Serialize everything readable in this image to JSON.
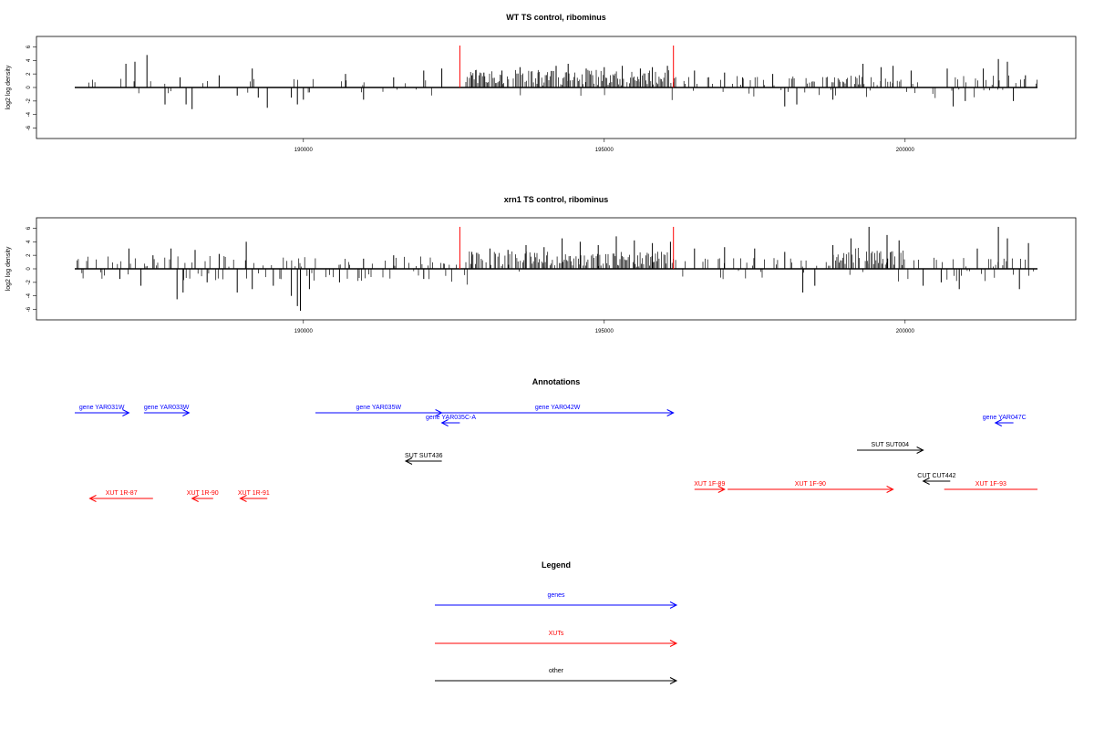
{
  "colors": {
    "gene": "#0000ff",
    "xut": "#ff0000",
    "other": "#000000",
    "highlight": "#ff0000",
    "signal": "#000000"
  },
  "chart_data": [
    {
      "type": "bar",
      "title": "WT TS control, ribominus",
      "ylabel": "log2 log density",
      "xlim": [
        186200,
        202200
      ],
      "ylim": [
        -7,
        7
      ],
      "yticks": [
        -6,
        -4,
        -2,
        0,
        2,
        4,
        6
      ],
      "xticks": [
        190000,
        195000,
        200000
      ],
      "highlights": [
        {
          "x": 192600,
          "y": 6.2
        },
        {
          "x": 196150,
          "y": 6.2
        }
      ],
      "peaks": [
        {
          "x": 187050,
          "y": 3.5
        },
        {
          "x": 187200,
          "y": 3.8
        },
        {
          "x": 187400,
          "y": 4.8
        },
        {
          "x": 187700,
          "y": -2.5
        },
        {
          "x": 187950,
          "y": 1.5
        },
        {
          "x": 188050,
          "y": -2.5
        },
        {
          "x": 188150,
          "y": -3.2
        },
        {
          "x": 188600,
          "y": 1.8
        },
        {
          "x": 188900,
          "y": -1.2
        },
        {
          "x": 189150,
          "y": 2.8
        },
        {
          "x": 189250,
          "y": -1.5
        },
        {
          "x": 189400,
          "y": -3.0
        },
        {
          "x": 189800,
          "y": -1.5
        },
        {
          "x": 189900,
          "y": -2.5
        },
        {
          "x": 190000,
          "y": -1.8
        },
        {
          "x": 190700,
          "y": 2.0
        },
        {
          "x": 191000,
          "y": -1.8
        },
        {
          "x": 191500,
          "y": 1.5
        },
        {
          "x": 192000,
          "y": 2.5
        },
        {
          "x": 192300,
          "y": 2.8
        },
        {
          "x": 192800,
          "y": 1.8
        },
        {
          "x": 193000,
          "y": 2.2
        },
        {
          "x": 193300,
          "y": 2.5
        },
        {
          "x": 193600,
          "y": 3.0
        },
        {
          "x": 193900,
          "y": 2.2
        },
        {
          "x": 194200,
          "y": 3.2
        },
        {
          "x": 194400,
          "y": 3.5
        },
        {
          "x": 194700,
          "y": 2.8
        },
        {
          "x": 195000,
          "y": 3.0
        },
        {
          "x": 195300,
          "y": 3.2
        },
        {
          "x": 195600,
          "y": 2.8
        },
        {
          "x": 195800,
          "y": 3.0
        },
        {
          "x": 196050,
          "y": 3.2
        },
        {
          "x": 196500,
          "y": 2.5
        },
        {
          "x": 197000,
          "y": 2.2
        },
        {
          "x": 197300,
          "y": 1.5
        },
        {
          "x": 197800,
          "y": 2.0
        },
        {
          "x": 198000,
          "y": -2.8
        },
        {
          "x": 198200,
          "y": -2.5
        },
        {
          "x": 198800,
          "y": -1.8
        },
        {
          "x": 199300,
          "y": 3.5
        },
        {
          "x": 199600,
          "y": 3.0
        },
        {
          "x": 199800,
          "y": 3.2
        },
        {
          "x": 200100,
          "y": 2.5
        },
        {
          "x": 200700,
          "y": 2.8
        },
        {
          "x": 200800,
          "y": -2.8
        },
        {
          "x": 201000,
          "y": -2.0
        },
        {
          "x": 201300,
          "y": 2.8
        },
        {
          "x": 201550,
          "y": 4.2
        },
        {
          "x": 201700,
          "y": 3.8
        },
        {
          "x": 201800,
          "y": -2.0
        },
        {
          "x": 202000,
          "y": 1.8
        }
      ]
    },
    {
      "type": "bar",
      "title": "xrn1 TS control, ribominus",
      "ylabel": "log2 log density",
      "xlim": [
        186200,
        202200
      ],
      "ylim": [
        -7,
        7
      ],
      "yticks": [
        -6,
        -4,
        -2,
        0,
        2,
        4,
        6
      ],
      "xticks": [
        190000,
        195000,
        200000
      ],
      "highlights": [
        {
          "x": 192600,
          "y": 6.2
        },
        {
          "x": 196150,
          "y": 6.2
        }
      ],
      "peaks": [
        {
          "x": 186950,
          "y": -1.5
        },
        {
          "x": 187100,
          "y": 3.0
        },
        {
          "x": 187300,
          "y": -2.5
        },
        {
          "x": 187500,
          "y": 2.0
        },
        {
          "x": 187800,
          "y": 3.0
        },
        {
          "x": 187900,
          "y": -4.5
        },
        {
          "x": 188000,
          "y": -3.5
        },
        {
          "x": 188200,
          "y": 2.8
        },
        {
          "x": 188400,
          "y": -2.0
        },
        {
          "x": 188600,
          "y": 2.2
        },
        {
          "x": 188900,
          "y": -3.5
        },
        {
          "x": 189050,
          "y": 4.0
        },
        {
          "x": 189150,
          "y": -3.0
        },
        {
          "x": 189500,
          "y": -2.5
        },
        {
          "x": 189800,
          "y": -4.0
        },
        {
          "x": 189900,
          "y": -5.5
        },
        {
          "x": 189950,
          "y": -6.2
        },
        {
          "x": 190100,
          "y": -3.0
        },
        {
          "x": 190600,
          "y": -2.0
        },
        {
          "x": 191000,
          "y": 1.5
        },
        {
          "x": 191500,
          "y": 2.0
        },
        {
          "x": 192000,
          "y": -1.5
        },
        {
          "x": 192800,
          "y": 2.5
        },
        {
          "x": 193100,
          "y": 3.0
        },
        {
          "x": 193400,
          "y": 2.8
        },
        {
          "x": 193700,
          "y": 3.5
        },
        {
          "x": 194000,
          "y": 3.2
        },
        {
          "x": 194300,
          "y": 4.5
        },
        {
          "x": 194600,
          "y": 4.0
        },
        {
          "x": 194900,
          "y": 3.5
        },
        {
          "x": 195200,
          "y": 4.8
        },
        {
          "x": 195500,
          "y": 4.2
        },
        {
          "x": 195800,
          "y": 3.8
        },
        {
          "x": 196100,
          "y": 4.0
        },
        {
          "x": 196500,
          "y": 3.0
        },
        {
          "x": 197000,
          "y": 3.2
        },
        {
          "x": 197500,
          "y": 3.0
        },
        {
          "x": 198000,
          "y": 2.5
        },
        {
          "x": 198300,
          "y": -3.5
        },
        {
          "x": 198500,
          "y": -2.5
        },
        {
          "x": 198800,
          "y": 3.5
        },
        {
          "x": 199100,
          "y": 4.5
        },
        {
          "x": 199400,
          "y": 6.2
        },
        {
          "x": 199700,
          "y": 5.0
        },
        {
          "x": 199900,
          "y": 4.2
        },
        {
          "x": 200300,
          "y": -2.5
        },
        {
          "x": 200600,
          "y": -2.0
        },
        {
          "x": 200900,
          "y": -3.0
        },
        {
          "x": 201200,
          "y": 3.0
        },
        {
          "x": 201550,
          "y": 6.2
        },
        {
          "x": 201700,
          "y": 4.5
        },
        {
          "x": 201900,
          "y": -3.0
        },
        {
          "x": 202050,
          "y": 3.8
        }
      ]
    }
  ],
  "annotations": {
    "title": "Annotations",
    "features": [
      {
        "label": "gene YAR031W",
        "type": "gene",
        "dir": "right",
        "start": 186200,
        "end": 187100,
        "row": 0
      },
      {
        "label": "gene YAR033W",
        "type": "gene",
        "dir": "right",
        "start": 187350,
        "end": 188100,
        "row": 0
      },
      {
        "label": "gene YAR035W",
        "type": "gene",
        "dir": "right",
        "start": 190200,
        "end": 192300,
        "row": 0
      },
      {
        "label": "gene YAR035C-A",
        "type": "gene",
        "dir": "left",
        "start": 192300,
        "end": 192600,
        "row": 1
      },
      {
        "label": "gene YAR042W",
        "type": "gene",
        "dir": "right",
        "start": 192300,
        "end": 196150,
        "row": 0
      },
      {
        "label": "gene YAR047C",
        "type": "gene",
        "dir": "left",
        "start": 201500,
        "end": 201800,
        "row": 1
      },
      {
        "label": "SUT SUT436",
        "type": "other",
        "dir": "left",
        "start": 191700,
        "end": 192300,
        "row": 2
      },
      {
        "label": "SUT SUT004",
        "type": "other",
        "dir": "right",
        "start": 199200,
        "end": 200300,
        "row": 3
      },
      {
        "label": "CUT CUT442",
        "type": "other",
        "dir": "left",
        "start": 200300,
        "end": 200750,
        "row": 4
      },
      {
        "label": "XUT 1R-87",
        "type": "xut",
        "dir": "left",
        "start": 186450,
        "end": 187500,
        "row": 5
      },
      {
        "label": "XUT 1R-90",
        "type": "xut",
        "dir": "left",
        "start": 188150,
        "end": 188500,
        "row": 5
      },
      {
        "label": "XUT 1R-91",
        "type": "xut",
        "dir": "left",
        "start": 188950,
        "end": 189400,
        "row": 5
      },
      {
        "label": "XUT 1F-89",
        "type": "xut",
        "dir": "right",
        "start": 196500,
        "end": 197000,
        "row": 6
      },
      {
        "label": "XUT 1F-90",
        "type": "xut",
        "dir": "right",
        "start": 197050,
        "end": 199800,
        "row": 6
      },
      {
        "label": "XUT 1F-93",
        "type": "xut",
        "dir": "none",
        "start": 200650,
        "end": 202200,
        "row": 6
      }
    ]
  },
  "legend": {
    "title": "Legend",
    "items": [
      {
        "label": "genes",
        "type": "gene"
      },
      {
        "label": "XUTs",
        "type": "xut"
      },
      {
        "label": "other",
        "type": "other"
      }
    ]
  }
}
